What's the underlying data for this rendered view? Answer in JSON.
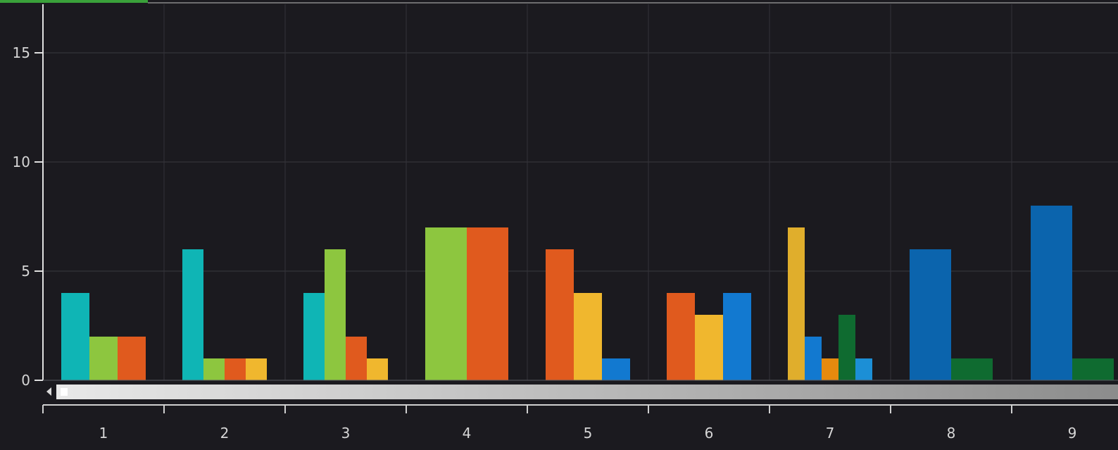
{
  "chart_data": {
    "type": "bar",
    "title": "",
    "xlabel": "",
    "ylabel": "",
    "ylim": [
      0,
      17
    ],
    "yticks": [
      0,
      5,
      10,
      15
    ],
    "grid": true,
    "categories": [
      "1",
      "2",
      "3",
      "4",
      "5",
      "6",
      "7",
      "8",
      "9"
    ],
    "groups": [
      {
        "category": "1",
        "bars": [
          {
            "value": 4,
            "color": "#0fb5b5"
          },
          {
            "value": 2,
            "color": "#8dc63f"
          },
          {
            "value": 2,
            "color": "#e05a1e"
          }
        ]
      },
      {
        "category": "2",
        "bars": [
          {
            "value": 6,
            "color": "#0fb5b5"
          },
          {
            "value": 1,
            "color": "#8dc63f"
          },
          {
            "value": 1,
            "color": "#e05a1e"
          },
          {
            "value": 1,
            "color": "#f0b72e"
          }
        ]
      },
      {
        "category": "3",
        "bars": [
          {
            "value": 4,
            "color": "#0fb5b5"
          },
          {
            "value": 6,
            "color": "#8dc63f"
          },
          {
            "value": 2,
            "color": "#e05a1e"
          },
          {
            "value": 1,
            "color": "#f0b72e"
          }
        ]
      },
      {
        "category": "4",
        "bars": [
          {
            "value": 7,
            "color": "#8dc63f"
          },
          {
            "value": 7,
            "color": "#e05a1e"
          }
        ]
      },
      {
        "category": "5",
        "bars": [
          {
            "value": 6,
            "color": "#e05a1e"
          },
          {
            "value": 4,
            "color": "#f0b72e"
          },
          {
            "value": 1,
            "color": "#1279d0"
          }
        ]
      },
      {
        "category": "6",
        "bars": [
          {
            "value": 4,
            "color": "#e05a1e"
          },
          {
            "value": 3,
            "color": "#f0b72e"
          },
          {
            "value": 4,
            "color": "#1279d0"
          }
        ]
      },
      {
        "category": "7",
        "bars": [
          {
            "value": 7,
            "color": "#e0ae2c"
          },
          {
            "value": 2,
            "color": "#1279d0"
          },
          {
            "value": 1,
            "color": "#e68a0e"
          },
          {
            "value": 3,
            "color": "#0f6b30"
          },
          {
            "value": 1,
            "color": "#1c8fd6"
          }
        ]
      },
      {
        "category": "8",
        "bars": [
          {
            "value": 6,
            "color": "#0b64ad"
          },
          {
            "value": 1,
            "color": "#0f6b30"
          }
        ]
      },
      {
        "category": "9",
        "bars": [
          {
            "value": 8,
            "color": "#0b64ad"
          },
          {
            "value": 1,
            "color": "#0f6b30"
          }
        ]
      }
    ]
  },
  "ui": {
    "accent_color": "#3aa13a",
    "scrollbar": {
      "track_color": "#c9c9c9",
      "thumb_color": "#ffffff"
    }
  }
}
